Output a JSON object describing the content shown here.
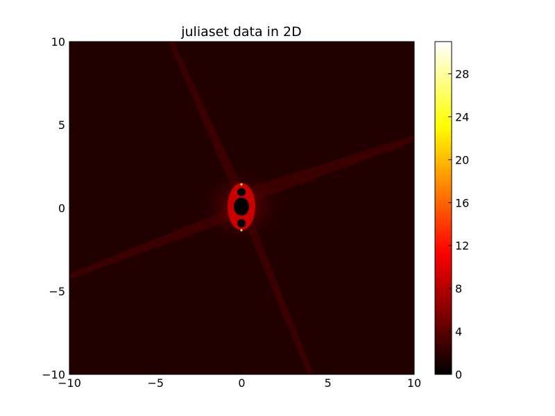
{
  "chart_data": {
    "type": "heatmap",
    "title": "juliaset data in 2D",
    "xlabel": "",
    "ylabel": "",
    "xlim": [
      -10,
      10
    ],
    "ylim": [
      -10,
      10
    ],
    "x_ticks": [
      "−10",
      "−5",
      "0",
      "5",
      "10"
    ],
    "y_ticks": [
      "10",
      "5",
      "0",
      "−5",
      "−10"
    ],
    "x_tick_values": [
      -10,
      -5,
      0,
      5,
      10
    ],
    "y_tick_values": [
      10,
      5,
      0,
      -5,
      -10
    ],
    "colormap": "hot",
    "colorbar": {
      "range": [
        0,
        31
      ],
      "ticks": [
        "0",
        "4",
        "8",
        "12",
        "16",
        "20",
        "24",
        "28"
      ],
      "tick_values": [
        0,
        4,
        8,
        12,
        16,
        20,
        24,
        28
      ]
    },
    "background_value": 1,
    "features": {
      "core_value": 0,
      "streak_value": 2,
      "fringe_value": 6
    },
    "colors": {
      "background": "#230000",
      "streak": "#3a0000",
      "core": "#000000",
      "fringe": "#c80000",
      "bright": "#ffea00"
    },
    "grid": false,
    "legend": "colorbar-right"
  }
}
